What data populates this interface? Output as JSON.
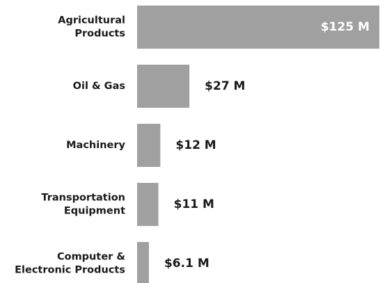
{
  "chart_data": {
    "type": "bar",
    "orientation": "horizontal",
    "categories": [
      "Agricultural\nProducts",
      "Oil & Gas",
      "Machinery",
      "Transportation\nEquipment",
      "Computer &\nElectronic Products"
    ],
    "values": [
      125,
      27,
      12,
      11,
      6.1
    ],
    "value_labels": [
      "$125 M",
      "$27 M",
      "$12 M",
      "$11 M",
      "$6.1 M"
    ],
    "color": "#a0a0a0"
  }
}
